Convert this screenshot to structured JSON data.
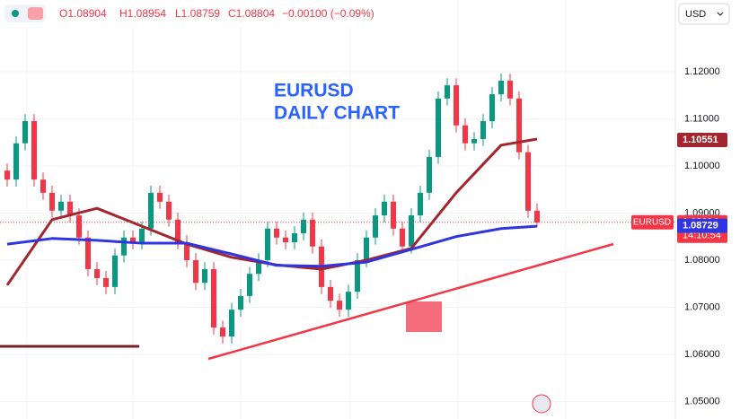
{
  "header": {
    "open": "O1.08904",
    "high": "H1.08954",
    "low": "L1.08759",
    "close": "C1.08804",
    "change": "−0.00100 (−0.09%)",
    "currency": "USD"
  },
  "chart_data": {
    "type": "candlestick",
    "title": "EURUSD",
    "subtitle": "DAILY CHART",
    "xlim": [
      -0.8,
      74.4
    ],
    "ylim": [
      1.0463,
      1.1352
    ],
    "yticks": [
      {
        "value": 1.05,
        "label": "1.05000"
      },
      {
        "value": 1.06,
        "label": "1.06000"
      },
      {
        "value": 1.07,
        "label": "1.07000"
      },
      {
        "value": 1.08,
        "label": "1.08000"
      },
      {
        "value": 1.09,
        "label": "1.09000"
      },
      {
        "value": 1.1,
        "label": "1.10000"
      },
      {
        "value": 1.11,
        "label": "1.11000"
      },
      {
        "value": 1.12,
        "label": "1.12000"
      }
    ],
    "up_color": "#089981",
    "down_color": "#f23645",
    "open": [
      1.099,
      1.0971,
      1.1048,
      1.1095,
      1.0971,
      1.0943,
      1.0905,
      1.0924,
      1.0895,
      1.0848,
      1.0781,
      1.0762,
      1.0743,
      1.081,
      1.0848,
      1.0838,
      1.0867,
      1.0943,
      1.0924,
      1.0886,
      1.0838,
      1.08,
      1.0752,
      1.0781,
      1.0657,
      1.0638,
      1.0695,
      1.0724,
      1.0771,
      1.08,
      1.0867,
      1.0848,
      1.0838,
      1.0857,
      1.0886,
      1.0829,
      1.0743,
      1.0714,
      1.0695,
      1.0733,
      1.08,
      1.0848,
      1.0895,
      1.0924,
      1.0867,
      1.0829,
      1.0895,
      1.0943,
      1.1019,
      1.1143,
      1.1171,
      1.1086,
      1.1048,
      1.1057,
      1.1095,
      1.1152,
      1.1181,
      1.1143,
      1.1029,
      1.0905
    ],
    "high": [
      1.1005,
      1.1063,
      1.111,
      1.111,
      1.0986,
      1.0958,
      1.0939,
      1.0939,
      1.091,
      1.0863,
      1.0796,
      1.0777,
      1.0825,
      1.0863,
      1.0863,
      1.0882,
      1.0958,
      1.0958,
      1.0939,
      1.0901,
      1.0853,
      1.0815,
      1.0796,
      1.0796,
      1.0672,
      1.071,
      1.0739,
      1.0786,
      1.0815,
      1.0882,
      1.0882,
      1.0863,
      1.0872,
      1.0901,
      1.0901,
      1.0844,
      1.0758,
      1.0729,
      1.0748,
      1.0815,
      1.0863,
      1.091,
      1.0939,
      1.0939,
      1.0882,
      1.091,
      1.0958,
      1.1034,
      1.1158,
      1.1186,
      1.1186,
      1.1101,
      1.1072,
      1.111,
      1.1167,
      1.1196,
      1.1196,
      1.1158,
      1.1044,
      1.092
    ],
    "low": [
      1.0956,
      1.0956,
      1.1033,
      1.0956,
      1.0928,
      1.089,
      1.089,
      1.088,
      1.0833,
      1.0766,
      1.0747,
      1.0728,
      1.0728,
      1.0795,
      1.0823,
      1.0823,
      1.0852,
      1.0909,
      1.0871,
      1.0823,
      1.0785,
      1.0737,
      1.0737,
      1.0642,
      1.0623,
      1.0623,
      1.068,
      1.0709,
      1.0756,
      1.0785,
      1.0833,
      1.0823,
      1.0823,
      1.0842,
      1.0814,
      1.0728,
      1.0699,
      1.068,
      1.068,
      1.0718,
      1.0785,
      1.0833,
      1.088,
      1.0852,
      1.0814,
      1.0814,
      1.088,
      1.0928,
      1.1004,
      1.1128,
      1.1071,
      1.1033,
      1.1033,
      1.1042,
      1.108,
      1.1137,
      1.1128,
      1.1014,
      1.089,
      1.087
    ],
    "close": [
      1.0971,
      1.1048,
      1.1095,
      1.0971,
      1.0943,
      1.0905,
      1.0924,
      1.0895,
      1.0848,
      1.0781,
      1.0762,
      1.0743,
      1.081,
      1.0848,
      1.0838,
      1.0867,
      1.0943,
      1.0924,
      1.0886,
      1.0838,
      1.08,
      1.0752,
      1.0781,
      1.0657,
      1.0638,
      1.0695,
      1.0724,
      1.0771,
      1.08,
      1.0867,
      1.0848,
      1.0838,
      1.0857,
      1.0886,
      1.0829,
      1.0743,
      1.0714,
      1.0695,
      1.0733,
      1.08,
      1.0848,
      1.0895,
      1.0924,
      1.0867,
      1.0829,
      1.0895,
      1.0943,
      1.1019,
      1.1143,
      1.1171,
      1.1086,
      1.1048,
      1.1057,
      1.1095,
      1.1152,
      1.1181,
      1.1143,
      1.1029,
      1.0905,
      1.088
    ],
    "series": [
      {
        "color": "#a3262f",
        "x": [
          0,
          5,
          10,
          15,
          20,
          25,
          30,
          35,
          40,
          45,
          50,
          55,
          59
        ],
        "values": [
          1.0747,
          1.0886,
          1.091,
          1.0872,
          1.0834,
          1.0806,
          1.079,
          1.0781,
          1.08,
          1.0825,
          1.0943,
          1.1044,
          1.1057
        ]
      },
      {
        "color": "#2f35e0",
        "x": [
          0,
          5,
          10,
          15,
          20,
          25,
          30,
          35,
          40,
          45,
          50,
          55,
          59
        ],
        "values": [
          1.0834,
          1.0846,
          1.0842,
          1.0836,
          1.0836,
          1.0813,
          1.0789,
          1.0787,
          1.0796,
          1.0823,
          1.085,
          1.0867,
          1.0872
        ]
      }
    ],
    "price_badges": [
      {
        "value": 1.10551,
        "color": "#a3262f"
      },
      {
        "value": 1.08804,
        "color": "#f23645",
        "symbol": "EURUSD",
        "countdown": "14:10:54"
      },
      {
        "value": 1.08729,
        "color": "#2f35e0"
      }
    ]
  }
}
